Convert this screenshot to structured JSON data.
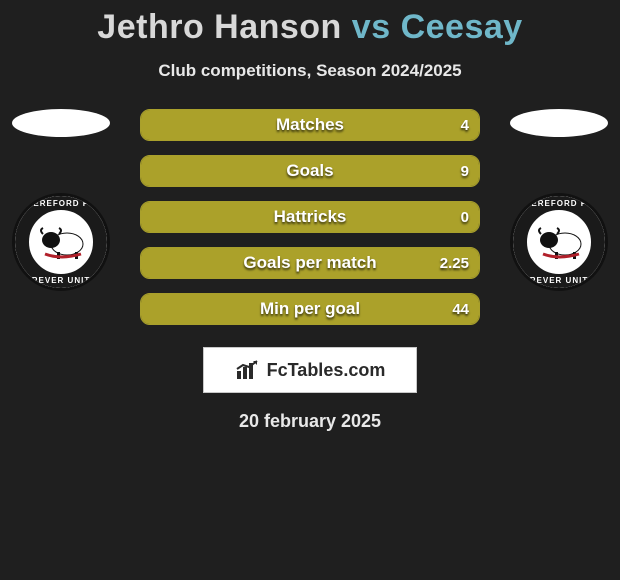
{
  "title": {
    "player1": "Jethro Hanson",
    "vs": "vs",
    "player2": "Ceesay",
    "player1_color": "#d8d8d8",
    "vs_color": "#6fb7c9",
    "player2_color": "#6fb7c9",
    "fontsize": 34
  },
  "subtitle": "Club competitions, Season 2024/2025",
  "bars": {
    "bar_color_left": "#aba12a",
    "bar_color_right": "#242424",
    "border_color": "#a9a02c",
    "label_color": "#ffffff",
    "height": 32,
    "radius": 10,
    "rows": [
      {
        "label": "Matches",
        "left_val": "",
        "right_val": "4",
        "left_pct": 100,
        "right_pct": 0
      },
      {
        "label": "Goals",
        "left_val": "",
        "right_val": "9",
        "left_pct": 100,
        "right_pct": 0
      },
      {
        "label": "Hattricks",
        "left_val": "",
        "right_val": "0",
        "left_pct": 100,
        "right_pct": 0
      },
      {
        "label": "Goals per match",
        "left_val": "",
        "right_val": "2.25",
        "left_pct": 100,
        "right_pct": 0
      },
      {
        "label": "Min per goal",
        "left_val": "",
        "right_val": "44",
        "left_pct": 100,
        "right_pct": 0
      }
    ]
  },
  "crest": {
    "top_text": "HEREFORD FC",
    "bottom_text": "FOREVER UNITED",
    "ring_color": "#1a1a1a",
    "inner_bg": "#ffffff",
    "bull_body": "#ffffff",
    "bull_head": "#1a1a1a",
    "bull_accent": "#b1202a"
  },
  "brand": {
    "text": "FcTables.com",
    "box_bg": "#ffffff",
    "box_border": "#c8c8c8",
    "icon_color": "#2a2a2a",
    "text_color": "#2a2a2a"
  },
  "date": "20 february 2025",
  "background_color": "#1f1f1f"
}
